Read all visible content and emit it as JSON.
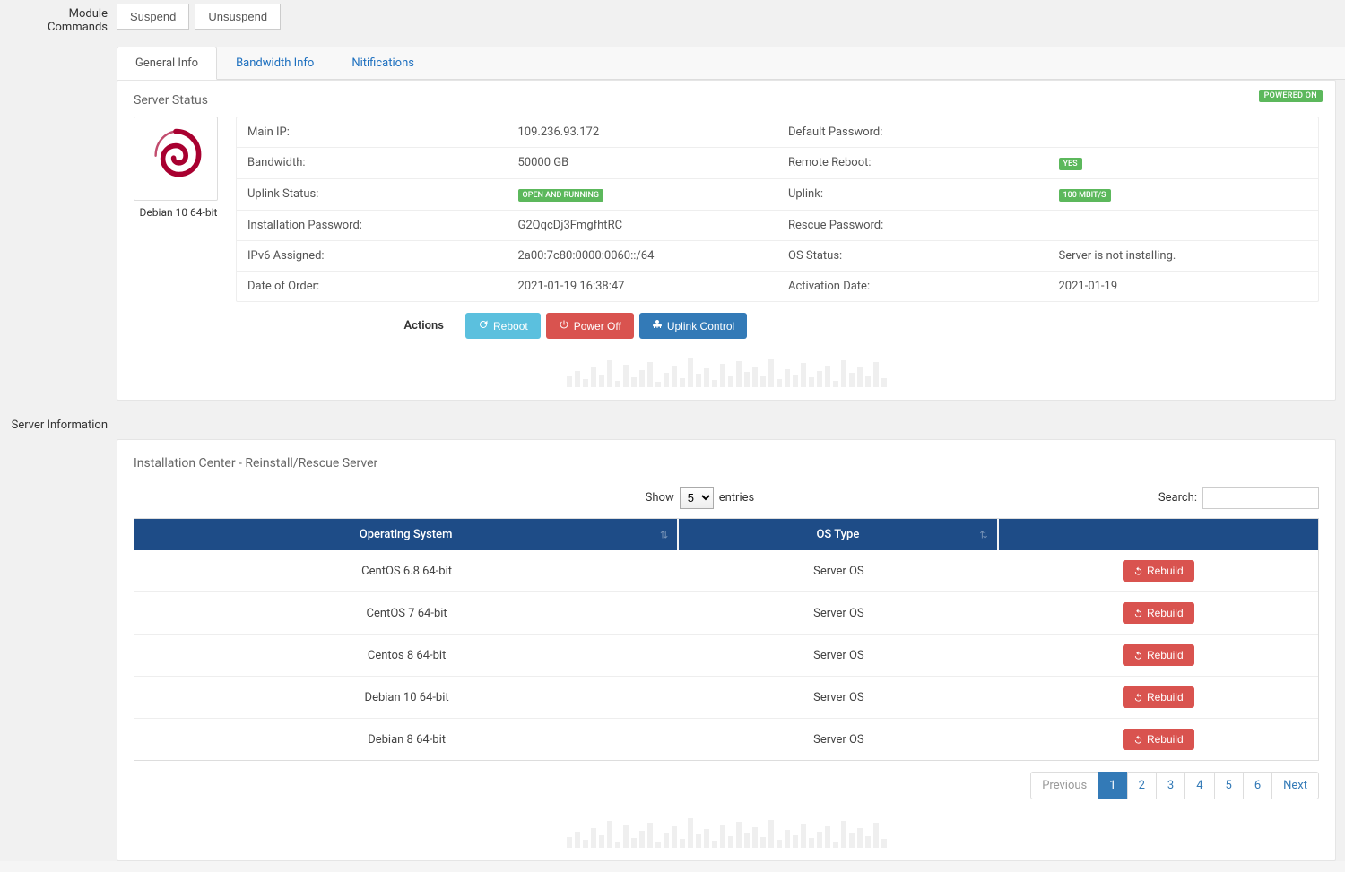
{
  "moduleCommands": {
    "label": "Module Commands",
    "buttons": [
      "Suspend",
      "Unsuspend"
    ]
  },
  "tabs": {
    "items": [
      "General Info",
      "Bandwidth Info",
      "Nitifications"
    ],
    "activeIndex": 0
  },
  "serverStatus": {
    "title": "Server Status",
    "powerBadge": "POWERED ON",
    "os": {
      "caption": "Debian 10 64-bit"
    },
    "rows": [
      {
        "l1": "Main IP:",
        "v1": "109.236.93.172",
        "l2": "Default Password:",
        "v2": ""
      },
      {
        "l1": "Bandwidth:",
        "v1": "50000 GB",
        "l2": "Remote Reboot:",
        "v2_badge": "YES"
      },
      {
        "l1": "Uplink Status:",
        "v1_badge": "OPEN AND RUNNING",
        "l2": "Uplink:",
        "v2_badge": "100 MBIT/S"
      },
      {
        "l1": "Installation Password:",
        "v1": "G2QqcDj3FmgfhtRC",
        "l2": "Rescue Password:",
        "v2": ""
      },
      {
        "l1": "IPv6 Assigned:",
        "v1": "2a00:7c80:0000:0060::/64",
        "l2": "OS Status:",
        "v2": "Server is not installing."
      },
      {
        "l1": "Date of Order:",
        "v1": "2021-01-19 16:38:47",
        "l2": "Activation Date:",
        "v2": "2021-01-19"
      }
    ],
    "actions": {
      "label": "Actions",
      "reboot": "Reboot",
      "poweroff": "Power Off",
      "uplink": "Uplink Control"
    }
  },
  "serverInfoLabel": "Server Information",
  "install": {
    "title": "Installation Center - Reinstall/Rescue Server",
    "showLabel": "Show",
    "entriesLabel": "entries",
    "lengthOptions": [
      "5"
    ],
    "lengthSelected": "5",
    "searchLabel": "Search:",
    "columns": [
      "Operating System",
      "OS Type",
      ""
    ],
    "rebuildLabel": "Rebuild",
    "rows": [
      {
        "os": "CentOS 6.8 64-bit",
        "type": "Server OS"
      },
      {
        "os": "CentOS 7 64-bit",
        "type": "Server OS"
      },
      {
        "os": "Centos 8 64-bit",
        "type": "Server OS"
      },
      {
        "os": "Debian 10 64-bit",
        "type": "Server OS"
      },
      {
        "os": "Debian 8 64-bit",
        "type": "Server OS"
      }
    ],
    "pagination": {
      "prev": "Previous",
      "next": "Next",
      "pages": [
        "1",
        "2",
        "3",
        "4",
        "5",
        "6"
      ],
      "active": 0
    }
  },
  "colors": {
    "tableHeader": "#1e4c87",
    "link": "#337ab7",
    "successBadge": "#5cb85c",
    "infoBtn": "#5bc0de",
    "dangerBtn": "#d9534f",
    "primaryBtn": "#337ab7"
  },
  "sparkHeights": [
    12,
    18,
    9,
    22,
    14,
    30,
    7,
    25,
    11,
    19,
    28,
    6,
    16,
    24,
    10,
    33,
    15,
    21,
    8,
    26,
    13,
    29,
    17,
    23,
    12,
    31,
    9,
    20,
    14,
    27,
    11,
    18,
    24,
    7,
    30,
    16,
    22,
    13,
    28,
    10
  ]
}
